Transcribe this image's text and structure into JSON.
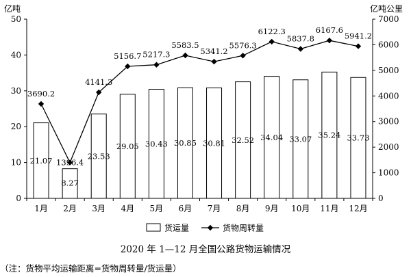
{
  "chart_data": {
    "type": "bar",
    "title": "2020 年 1—12 月全国公路货物运输情况",
    "note": "（注：货物平均运输距离=货物周转量/货运量）",
    "left_axis": {
      "unit": "亿吨",
      "ylim": [
        0,
        50
      ],
      "ticks": [
        "0",
        "10",
        "20",
        "30",
        "40",
        "50"
      ]
    },
    "right_axis": {
      "unit": "亿吨公里",
      "ylim": [
        0,
        7000
      ],
      "ticks": [
        "0",
        "1000",
        "2000",
        "3000",
        "4000",
        "5000",
        "6000",
        "7000"
      ]
    },
    "categories": [
      "1月",
      "2月",
      "3月",
      "4月",
      "5月",
      "6月",
      "7月",
      "8月",
      "9月",
      "10月",
      "11月",
      "12月"
    ],
    "series": [
      {
        "name": "货运量",
        "type": "bar",
        "axis": "left",
        "values": [
          21.07,
          8.27,
          23.53,
          29.05,
          30.43,
          30.85,
          30.81,
          32.52,
          34.04,
          33.07,
          35.24,
          33.73
        ],
        "labels": [
          "21.07",
          "8.27",
          "23.53",
          "29.05",
          "30.43",
          "30.85",
          "30.81",
          "32.52",
          "34.04",
          "33.07",
          "35.24",
          "33.73"
        ]
      },
      {
        "name": "货物周转量",
        "type": "line",
        "axis": "right",
        "values": [
          3690.2,
          1396.4,
          4141.3,
          5156.7,
          5217.3,
          5583.5,
          5341.2,
          5576.3,
          6122.3,
          5837.8,
          6167.6,
          5941.2
        ],
        "labels": [
          "3690.2",
          "1396.4",
          "4141.3",
          "5156.7",
          "5217.3",
          "5583.5",
          "5341.2",
          "5576.3",
          "6122.3",
          "5837.8",
          "6167.6",
          "5941.2"
        ]
      }
    ],
    "legend_position": "bottom",
    "grid": false,
    "colors": {
      "bar_fill": "#ffffff",
      "bar_stroke": "#000000",
      "line": "#000000",
      "marker": "#000000"
    }
  }
}
